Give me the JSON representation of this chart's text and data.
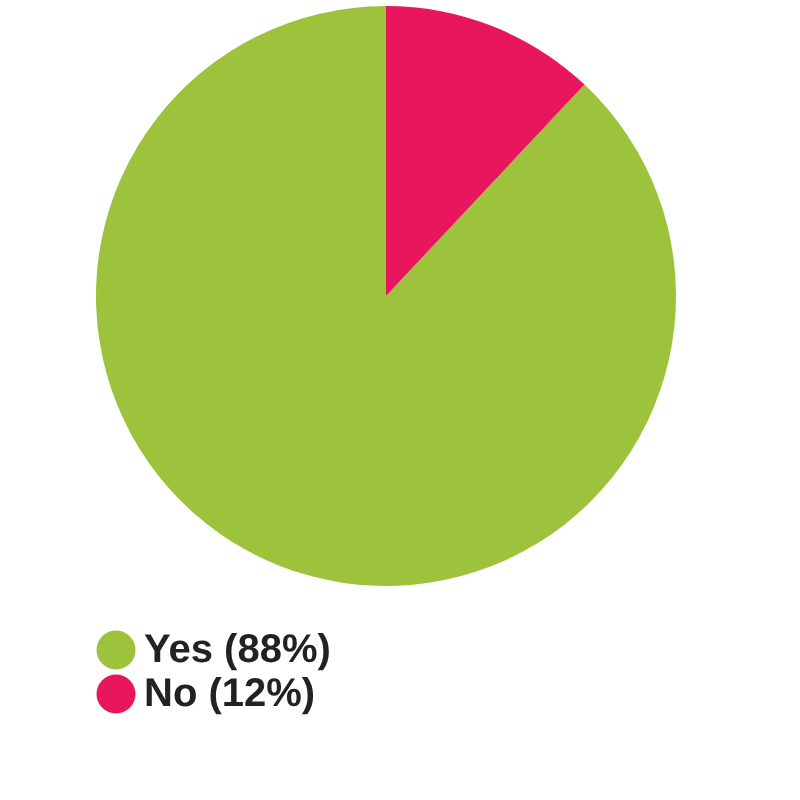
{
  "chart_data": {
    "type": "pie",
    "categories": [
      "Yes",
      "No"
    ],
    "values": [
      88,
      12
    ],
    "colors": [
      "#9dc23c",
      "#e8175d"
    ],
    "value_labels": [
      "(88%)",
      "(12%)"
    ],
    "legend": "bottom"
  }
}
